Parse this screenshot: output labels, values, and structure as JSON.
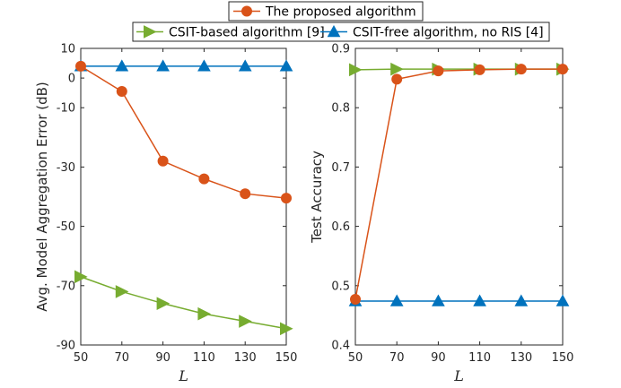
{
  "legend": {
    "entries": [
      {
        "label": "The proposed algorithm",
        "color": "#D95319",
        "marker": "circle"
      },
      {
        "label": "CSIT-based algorithm [9]",
        "color": "#77AC30",
        "marker": "triangle-right"
      },
      {
        "label": "CSIT-free algorithm, no RIS [4]",
        "color": "#0072BD",
        "marker": "triangle-up"
      }
    ]
  },
  "chart_data": [
    {
      "type": "line",
      "xlabel": "L",
      "ylabel": "Avg. Model Aggregation Error (dB)",
      "x": [
        50,
        70,
        90,
        110,
        130,
        150
      ],
      "xlim": [
        50,
        150
      ],
      "ylim": [
        -90,
        10
      ],
      "xticks": [
        50,
        70,
        90,
        110,
        130,
        150
      ],
      "yticks": [
        -90,
        -70,
        -50,
        -30,
        -10,
        0,
        10
      ],
      "grid": false,
      "series": [
        {
          "name": "The proposed algorithm",
          "values": [
            4,
            -4.5,
            -28,
            -34,
            -39,
            -40.5
          ]
        },
        {
          "name": "CSIT-based algorithm [9]",
          "values": [
            -67,
            -72,
            -76,
            -79.5,
            -82,
            -84.5
          ]
        },
        {
          "name": "CSIT-free algorithm, no RIS [4]",
          "values": [
            4,
            4,
            4,
            4,
            4,
            4
          ]
        }
      ]
    },
    {
      "type": "line",
      "xlabel": "L",
      "ylabel": "Test Accuracy",
      "x": [
        50,
        70,
        90,
        110,
        130,
        150
      ],
      "xlim": [
        50,
        150
      ],
      "ylim": [
        0.4,
        0.9
      ],
      "xticks": [
        50,
        70,
        90,
        110,
        130,
        150
      ],
      "yticks": [
        0.4,
        0.5,
        0.6,
        0.7,
        0.8,
        0.9
      ],
      "grid": false,
      "series": [
        {
          "name": "The proposed algorithm",
          "values": [
            0.477,
            0.848,
            0.862,
            0.864,
            0.865,
            0.865
          ]
        },
        {
          "name": "CSIT-based algorithm [9]",
          "values": [
            0.864,
            0.865,
            0.865,
            0.865,
            0.865,
            0.865
          ]
        },
        {
          "name": "CSIT-free algorithm, no RIS [4]",
          "values": [
            0.474,
            0.474,
            0.474,
            0.474,
            0.474,
            0.474
          ]
        }
      ]
    }
  ]
}
